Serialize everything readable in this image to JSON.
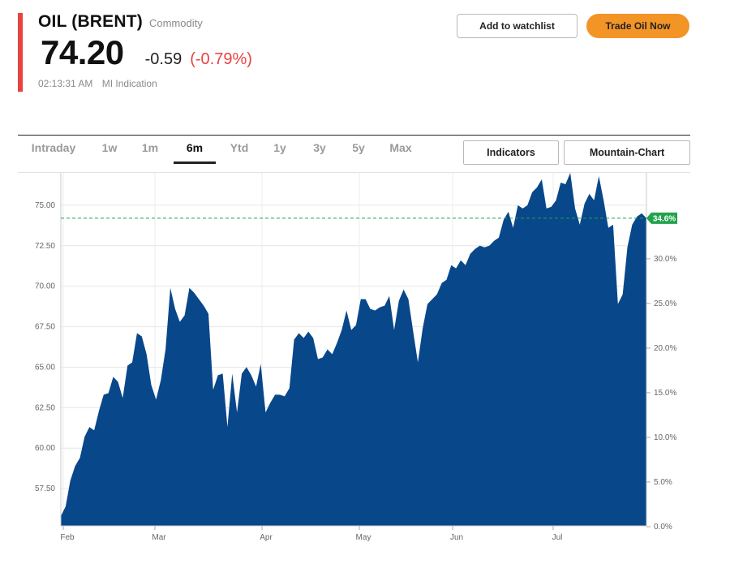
{
  "header": {
    "title": "OIL (BRENT)",
    "asset_type": "Commodity",
    "price": "74.20",
    "change": "-0.59",
    "change_pct": "(-0.79%)",
    "time": "02:13:31 AM",
    "indication": "MI Indication"
  },
  "actions": {
    "watchlist_label": "Add to watchlist",
    "trade_label": "Trade Oil Now"
  },
  "tabs": [
    {
      "label": "Intraday",
      "active": false
    },
    {
      "label": "1w",
      "active": false
    },
    {
      "label": "1m",
      "active": false
    },
    {
      "label": "6m",
      "active": true
    },
    {
      "label": "Ytd",
      "active": false
    },
    {
      "label": "1y",
      "active": false
    },
    {
      "label": "3y",
      "active": false
    },
    {
      "label": "5y",
      "active": false
    },
    {
      "label": "Max",
      "active": false
    }
  ],
  "controls": {
    "indicators_label": "Indicators",
    "chart_type_label": "Mountain-Chart"
  },
  "colors": {
    "accent_negative": "#e8423f",
    "trade_button": "#f39426",
    "area_fill": "#08478a",
    "current_marker": "#21a34b"
  },
  "chart_data": {
    "type": "area",
    "x_labels": [
      "Feb",
      "Mar",
      "Apr",
      "May",
      "Jun",
      "Jul"
    ],
    "y_ticks": [
      "57.50",
      "60.00",
      "62.50",
      "65.00",
      "67.50",
      "70.00",
      "72.50",
      "75.00"
    ],
    "y2_ticks": [
      "0.0%",
      "5.0%",
      "10.0%",
      "15.0%",
      "20.0%",
      "25.0%",
      "30.0%"
    ],
    "ylim": [
      55.2,
      77.0
    ],
    "y2_base": 55.15,
    "current_label": "34.6%",
    "current_value": 74.2,
    "grid": true,
    "series": [
      {
        "values": [
          55.8,
          56.4,
          58.0,
          58.9,
          59.4,
          60.7,
          61.3,
          61.1,
          62.3,
          63.3,
          63.4,
          64.4,
          64.1,
          63.1,
          65.1,
          65.3,
          67.1,
          66.9,
          65.8,
          63.9,
          63.0,
          64.2,
          66.1,
          69.9,
          68.6,
          67.8,
          68.2,
          69.9,
          69.6,
          69.2,
          68.8,
          68.3,
          63.6,
          64.5,
          64.6,
          61.3,
          64.6,
          62.2,
          64.6,
          65.0,
          64.5,
          63.8,
          65.2,
          62.2,
          62.8,
          63.3,
          63.3,
          63.2,
          63.7,
          66.7,
          67.1,
          66.8,
          67.2,
          66.8,
          65.5,
          65.6,
          66.1,
          65.8,
          66.5,
          67.3,
          68.5,
          67.3,
          67.6,
          69.2,
          69.2,
          68.6,
          68.5,
          68.7,
          68.8,
          69.4,
          67.3,
          69.1,
          69.8,
          69.2,
          67.2,
          65.3,
          67.4,
          68.9,
          69.2,
          69.5,
          70.2,
          70.4,
          71.3,
          71.1,
          71.6,
          71.3,
          72.0,
          72.3,
          72.5,
          72.4,
          72.5,
          72.8,
          73.0,
          74.1,
          74.6,
          73.6,
          75.0,
          74.8,
          75.0,
          75.8,
          76.1,
          76.6,
          74.8,
          74.9,
          75.3,
          76.4,
          76.3,
          77.0,
          74.8,
          73.8,
          75.1,
          75.7,
          75.3,
          76.8,
          75.3,
          73.6,
          73.8,
          68.9,
          69.5,
          72.4,
          73.8,
          74.3,
          74.5,
          74.2
        ]
      }
    ]
  }
}
